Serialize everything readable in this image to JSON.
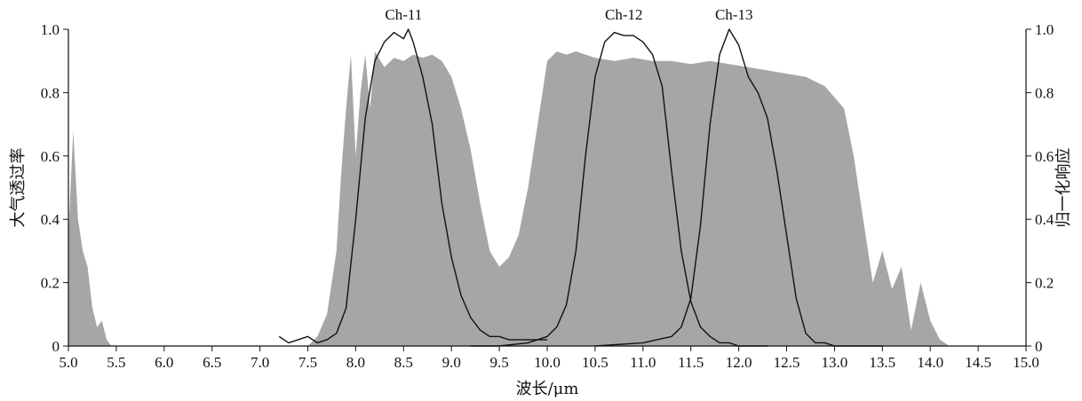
{
  "chart_data": {
    "type": "area",
    "xlabel": "波长/μm",
    "ylabel_left": "大气透过率",
    "ylabel_right": "归一化响应",
    "xlim": [
      5.0,
      15.0
    ],
    "ylim_left": [
      0,
      1.0
    ],
    "ylim_right": [
      0,
      1.0
    ],
    "x_ticks": [
      "5.0",
      "5.5",
      "6.0",
      "6.5",
      "7.0",
      "7.5",
      "8.0",
      "8.5",
      "9.0",
      "9.5",
      "10.0",
      "10.5",
      "11.0",
      "11.5",
      "12.0",
      "12.5",
      "13.0",
      "13.5",
      "14.0",
      "14.5",
      "15.0"
    ],
    "y_ticks_left": [
      "0",
      "0.2",
      "0.4",
      "0.6",
      "0.8",
      "1.0"
    ],
    "y_ticks_right": [
      "0",
      "0.2",
      "0.4",
      "0.6",
      "0.8",
      "1.0"
    ],
    "grid": false,
    "colors": {
      "transmittance": "#a6a6a6",
      "response": "#111111",
      "axis": "#111111"
    },
    "transmittance": {
      "name": "",
      "x": [
        5.0,
        5.05,
        5.1,
        5.15,
        5.2,
        5.25,
        5.3,
        5.35,
        5.4,
        5.45,
        5.5,
        7.5,
        7.6,
        7.7,
        7.8,
        7.85,
        7.9,
        7.95,
        8.0,
        8.05,
        8.1,
        8.15,
        8.2,
        8.3,
        8.4,
        8.5,
        8.6,
        8.7,
        8.8,
        8.9,
        9.0,
        9.1,
        9.2,
        9.3,
        9.4,
        9.5,
        9.6,
        9.7,
        9.8,
        9.9,
        10.0,
        10.1,
        10.2,
        10.3,
        10.5,
        10.7,
        10.9,
        11.1,
        11.3,
        11.5,
        11.7,
        11.9,
        12.1,
        12.3,
        12.5,
        12.7,
        12.9,
        13.1,
        13.2,
        13.3,
        13.4,
        13.5,
        13.6,
        13.7,
        13.8,
        13.9,
        14.0,
        14.1,
        14.2,
        15.0
      ],
      "y": [
        0.35,
        0.68,
        0.4,
        0.3,
        0.25,
        0.12,
        0.06,
        0.08,
        0.02,
        0.0,
        0.0,
        0.0,
        0.03,
        0.1,
        0.3,
        0.55,
        0.75,
        0.92,
        0.6,
        0.8,
        0.92,
        0.75,
        0.93,
        0.88,
        0.91,
        0.9,
        0.92,
        0.91,
        0.92,
        0.9,
        0.85,
        0.75,
        0.62,
        0.45,
        0.3,
        0.25,
        0.28,
        0.35,
        0.5,
        0.7,
        0.9,
        0.93,
        0.92,
        0.93,
        0.91,
        0.9,
        0.91,
        0.9,
        0.9,
        0.89,
        0.9,
        0.89,
        0.88,
        0.87,
        0.86,
        0.85,
        0.82,
        0.75,
        0.6,
        0.4,
        0.2,
        0.3,
        0.18,
        0.25,
        0.05,
        0.2,
        0.08,
        0.02,
        0.0,
        0.0
      ]
    },
    "series": [
      {
        "name": "Ch-11",
        "x": [
          7.2,
          7.3,
          7.4,
          7.5,
          7.6,
          7.7,
          7.8,
          7.9,
          8.0,
          8.1,
          8.2,
          8.3,
          8.4,
          8.5,
          8.55,
          8.6,
          8.7,
          8.8,
          8.9,
          9.0,
          9.1,
          9.2,
          9.3,
          9.4,
          9.5,
          9.6,
          9.7,
          9.8,
          9.9,
          10.0
        ],
        "y": [
          0.03,
          0.01,
          0.02,
          0.03,
          0.01,
          0.02,
          0.04,
          0.12,
          0.4,
          0.72,
          0.9,
          0.96,
          0.99,
          0.97,
          1.0,
          0.96,
          0.85,
          0.7,
          0.45,
          0.28,
          0.16,
          0.09,
          0.05,
          0.03,
          0.03,
          0.02,
          0.02,
          0.02,
          0.02,
          0.02
        ]
      },
      {
        "name": "Ch-12",
        "x": [
          9.2,
          9.5,
          9.8,
          10.0,
          10.1,
          10.2,
          10.3,
          10.4,
          10.5,
          10.6,
          10.7,
          10.8,
          10.9,
          11.0,
          11.1,
          11.2,
          11.3,
          11.4,
          11.5,
          11.6,
          11.7,
          11.8,
          11.9,
          12.0,
          12.3
        ],
        "y": [
          0.0,
          0.0,
          0.01,
          0.03,
          0.06,
          0.13,
          0.3,
          0.6,
          0.85,
          0.96,
          0.99,
          0.98,
          0.98,
          0.96,
          0.92,
          0.82,
          0.55,
          0.3,
          0.14,
          0.06,
          0.03,
          0.01,
          0.01,
          0.0,
          0.0
        ]
      },
      {
        "name": "Ch-13",
        "x": [
          10.5,
          11.0,
          11.3,
          11.4,
          11.5,
          11.6,
          11.7,
          11.8,
          11.9,
          12.0,
          12.1,
          12.2,
          12.3,
          12.4,
          12.5,
          12.6,
          12.7,
          12.8,
          12.9,
          13.0,
          13.5
        ],
        "y": [
          0.0,
          0.01,
          0.03,
          0.06,
          0.15,
          0.38,
          0.7,
          0.92,
          1.0,
          0.95,
          0.85,
          0.8,
          0.72,
          0.55,
          0.35,
          0.15,
          0.04,
          0.01,
          0.01,
          0.0,
          0.0
        ]
      }
    ],
    "band_labels": [
      {
        "text": "Ch-11",
        "x": 8.5
      },
      {
        "text": "Ch-12",
        "x": 10.8
      },
      {
        "text": "Ch-13",
        "x": 11.95
      }
    ]
  }
}
